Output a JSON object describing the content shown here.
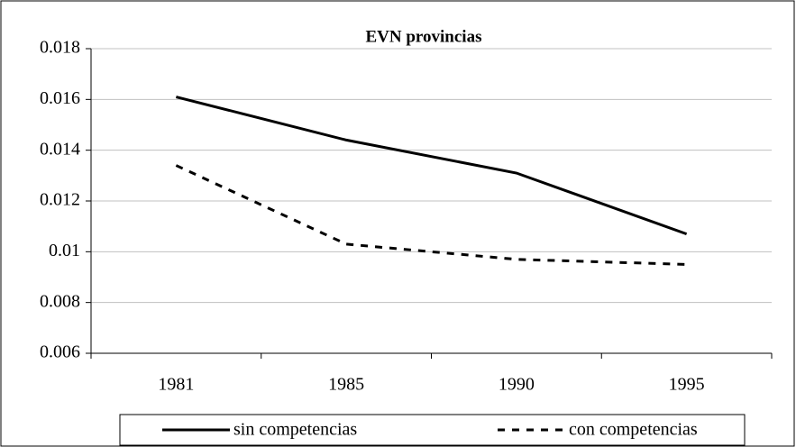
{
  "chart_data": {
    "type": "line",
    "title": "EVN provincias",
    "categories": [
      "1981",
      "1985",
      "1990",
      "1995"
    ],
    "series": [
      {
        "name": "sin competencias",
        "color": "#000000",
        "style": "solid",
        "values": [
          0.0161,
          0.0144,
          0.0131,
          0.0107
        ]
      },
      {
        "name": "con competencias",
        "color": "#000000",
        "style": "dashed",
        "values": [
          0.0134,
          0.0103,
          0.0097,
          0.0095
        ]
      }
    ],
    "ylim": [
      0.006,
      0.018
    ],
    "yticks": [
      0.006,
      0.008,
      0.01,
      0.012,
      0.014,
      0.016,
      0.018
    ],
    "grid": true,
    "legend": "bottom"
  }
}
